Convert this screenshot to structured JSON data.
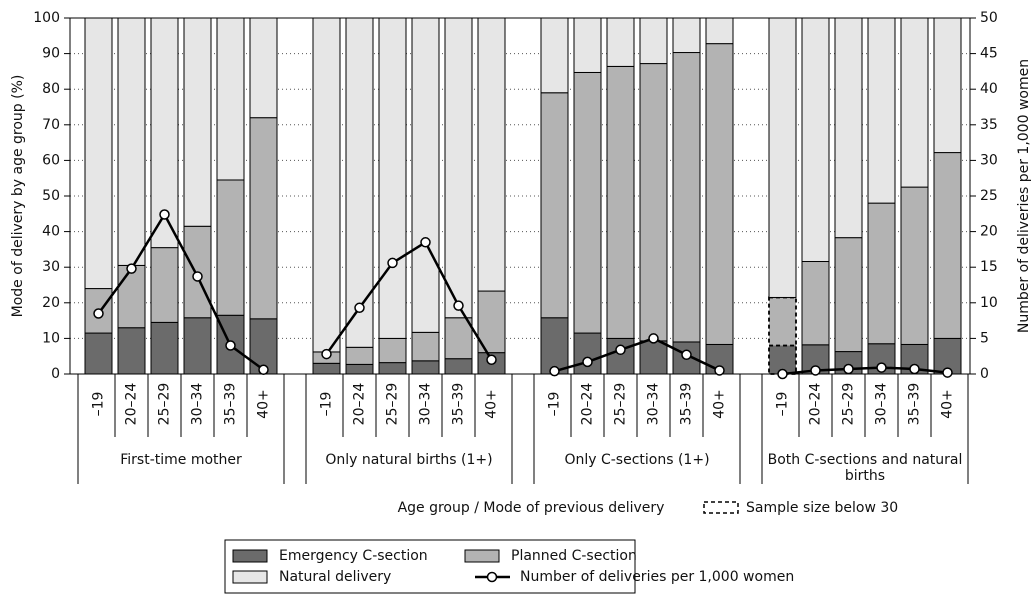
{
  "chart_data": {
    "type": "bar",
    "stacked": true,
    "y_label": "Mode of delivery by age group (%)",
    "y2_label": "Number of deliveries per 1,000 women",
    "x_label": "Age group / Mode of previous delivery",
    "groups": [
      "First-time mother",
      "Only natural births (1+)",
      "Only C-sections (1+)",
      "Both C-sections and natural births"
    ],
    "categories": [
      [
        "–19",
        "20–24",
        "25–29",
        "30–34",
        "35–39",
        "40+"
      ],
      [
        "–19",
        "20–24",
        "25–29",
        "30–34",
        "35–39",
        "40+"
      ],
      [
        "–19",
        "20–24",
        "25–29",
        "30–34",
        "35–39",
        "40+"
      ],
      [
        "–19",
        "20–24",
        "25–29",
        "30–34",
        "35–39",
        "40+"
      ]
    ],
    "sample_note": "Sample size below 30",
    "sample_below_30": [
      [
        false,
        false,
        false,
        false,
        false,
        false
      ],
      [
        false,
        false,
        false,
        false,
        false,
        false
      ],
      [
        false,
        false,
        false,
        false,
        false,
        false
      ],
      [
        true,
        false,
        false,
        false,
        false,
        false
      ]
    ],
    "series": [
      {
        "name": "Emergency C-section",
        "color": "#6b6b6b",
        "values": [
          [
            11.5,
            13,
            14.5,
            15.8,
            16.5,
            15.5
          ],
          [
            3,
            2.7,
            3.2,
            3.7,
            4.3,
            6
          ],
          [
            15.8,
            11.5,
            10,
            9.3,
            9,
            8.3
          ],
          [
            8,
            8.2,
            6.3,
            8.5,
            8.3,
            10
          ]
        ]
      },
      {
        "name": "Planned C-section",
        "color": "#b3b3b3",
        "values": [
          [
            12.5,
            17.5,
            21,
            25.7,
            38,
            56.5
          ],
          [
            3.2,
            4.8,
            6.8,
            8,
            11.5,
            17.3
          ],
          [
            63.2,
            73.2,
            76.4,
            77.9,
            81.3,
            84.5
          ],
          [
            13.5,
            23.4,
            32,
            39.5,
            44.2,
            52.2
          ]
        ]
      },
      {
        "name": "Natural delivery",
        "color": "#e6e6e6",
        "values": [
          [
            76,
            69.5,
            64.5,
            58.5,
            45.5,
            28
          ],
          [
            93.8,
            92.5,
            90,
            88.3,
            84.2,
            76.7
          ],
          [
            21,
            15.3,
            13.6,
            12.8,
            9.7,
            7.2
          ],
          [
            78.5,
            68.4,
            61.7,
            52,
            47.5,
            37.8
          ]
        ]
      },
      {
        "name": "Number of deliveries per 1,000 women",
        "type": "line",
        "axis": "y2",
        "color": "#000000",
        "values": [
          [
            8.5,
            14.8,
            22.4,
            13.7,
            4,
            0.6
          ],
          [
            2.8,
            9.3,
            15.6,
            18.5,
            9.6,
            2
          ],
          [
            0.4,
            1.7,
            3.4,
            5,
            2.7,
            0.5
          ],
          [
            0,
            0.5,
            0.7,
            0.9,
            0.7,
            0.2
          ]
        ]
      }
    ],
    "ylim": [
      0,
      100
    ],
    "yticks": [
      0,
      10,
      20,
      30,
      40,
      50,
      60,
      70,
      80,
      90,
      100
    ],
    "y2lim": [
      0,
      50
    ],
    "y2ticks": [
      0,
      5,
      10,
      15,
      20,
      25,
      30,
      35,
      40,
      45,
      50
    ],
    "grid": true
  }
}
